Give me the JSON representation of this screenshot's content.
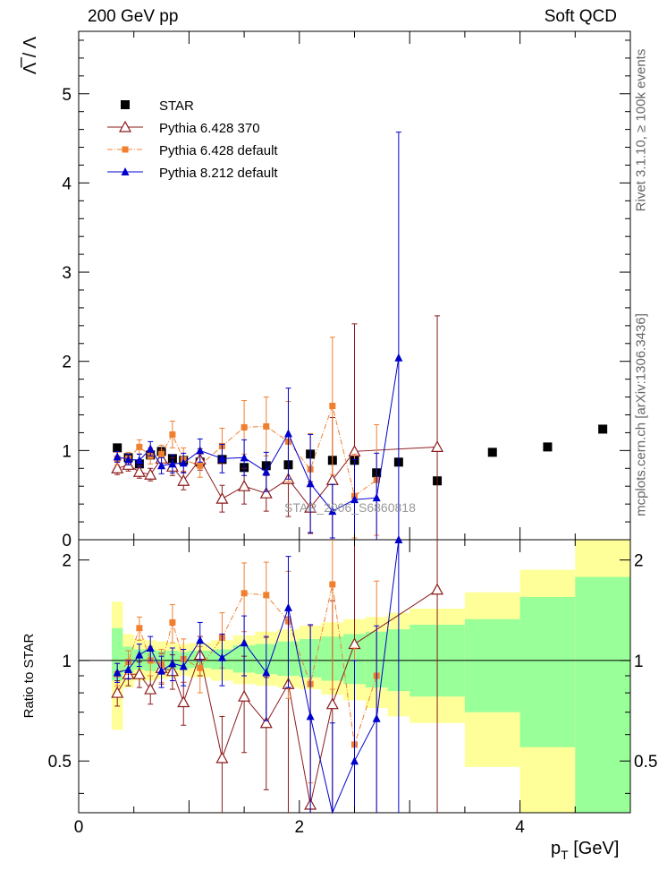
{
  "header": {
    "left_title": "200 GeV pp",
    "right_title": "Soft QCD"
  },
  "side_labels": {
    "rivet": "Rivet 3.1.10, ≥ 100k events",
    "mcplots": "mcplots.cern.ch [arXiv:1306.3436]"
  },
  "watermark": "STAR_2006_S6860818",
  "colors": {
    "star": "#000000",
    "pythia6_370": "#8b1a1a",
    "pythia6_default": "#f07f30",
    "pythia8": "#0000cc",
    "band_inner": "#99ff99",
    "band_outer": "#ffff99"
  },
  "chart_data": [
    {
      "type": "scatter",
      "panel": "main",
      "ylabel": "Λ̅ / Λ",
      "xlim": [
        0,
        5
      ],
      "ylim": [
        0,
        5.7
      ],
      "yticks": [
        0,
        1,
        2,
        3,
        4,
        5
      ],
      "legend": [
        "STAR",
        "Pythia 6.428 370",
        "Pythia 6.428 default",
        "Pythia 8.212 default"
      ],
      "series": [
        {
          "name": "STAR",
          "marker": "square",
          "x": [
            0.35,
            0.45,
            0.55,
            0.65,
            0.75,
            0.85,
            0.95,
            1.1,
            1.3,
            1.5,
            1.7,
            1.9,
            2.1,
            2.3,
            2.5,
            2.7,
            2.9,
            3.25,
            3.75,
            4.25,
            4.75
          ],
          "y": [
            1.03,
            0.92,
            0.85,
            0.95,
            0.99,
            0.91,
            0.89,
            0.87,
            0.9,
            0.81,
            0.83,
            0.84,
            0.96,
            0.89,
            0.89,
            0.75,
            0.87,
            0.66,
            0.98,
            1.04,
            1.24
          ],
          "yerr": [
            0.02,
            0.02,
            0.02,
            0.02,
            0.02,
            0.02,
            0.02,
            0.02,
            0.02,
            0.02,
            0.02,
            0.02,
            0.02,
            0.02,
            0.02,
            0.02,
            0.02,
            0.02,
            0.02,
            0.02,
            0.02
          ]
        },
        {
          "name": "Pythia 6.428 370",
          "marker": "open-triangle",
          "x": [
            0.35,
            0.45,
            0.55,
            0.65,
            0.75,
            0.85,
            0.95,
            1.1,
            1.3,
            1.5,
            1.7,
            1.9,
            2.1,
            2.3,
            2.5,
            3.25
          ],
          "y": [
            0.8,
            0.84,
            0.76,
            0.73,
            0.91,
            0.82,
            0.66,
            0.9,
            0.46,
            0.6,
            0.52,
            0.68,
            0.36,
            0.67,
            0.99,
            1.04
          ],
          "yerr": [
            0.07,
            0.07,
            0.07,
            0.07,
            0.1,
            0.1,
            0.1,
            0.12,
            0.15,
            0.2,
            0.2,
            0.42,
            0.29,
            0.7,
            1.43,
            1.47
          ]
        },
        {
          "name": "Pythia 6.428 default",
          "marker": "small-square",
          "x": [
            0.35,
            0.45,
            0.55,
            0.65,
            0.75,
            0.85,
            0.95,
            1.1,
            1.3,
            1.5,
            1.7,
            1.9,
            2.1,
            2.3,
            2.5,
            2.7
          ],
          "y": [
            0.91,
            0.91,
            1.04,
            0.94,
            0.96,
            1.18,
            0.9,
            0.83,
            1.05,
            1.26,
            1.27,
            1.1,
            0.79,
            1.5,
            0.49,
            0.67
          ],
          "yerr": [
            0.07,
            0.07,
            0.08,
            0.09,
            0.1,
            0.15,
            0.13,
            0.13,
            0.2,
            0.3,
            0.33,
            0.45,
            0.4,
            0.77,
            0.47,
            0.62
          ]
        },
        {
          "name": "Pythia 8.212 default",
          "marker": "triangle",
          "x": [
            0.35,
            0.45,
            0.55,
            0.65,
            0.75,
            0.85,
            0.95,
            1.1,
            1.3,
            1.5,
            1.7,
            1.9,
            2.1,
            2.3,
            2.5,
            2.7,
            2.9
          ],
          "y": [
            0.93,
            0.9,
            0.89,
            1.02,
            0.83,
            0.85,
            0.86,
            1.0,
            0.91,
            0.92,
            0.76,
            1.19,
            0.63,
            0.32,
            0.45,
            0.47,
            2.04
          ],
          "yerr": [
            0.06,
            0.06,
            0.07,
            0.08,
            0.09,
            0.1,
            0.11,
            0.13,
            0.16,
            0.2,
            0.22,
            0.51,
            0.55,
            0.3,
            0.45,
            0.5,
            2.53
          ]
        }
      ]
    },
    {
      "type": "scatter",
      "panel": "ratio",
      "ylabel": "Ratio to STAR",
      "xlabel": "p_T [GeV]",
      "xlim": [
        0,
        5
      ],
      "ylim": [
        0.35,
        2.3
      ],
      "xticks": [
        0,
        2,
        4
      ],
      "yticks": [
        0.5,
        1,
        2
      ],
      "bands": {
        "x_edges": [
          0.3,
          0.4,
          0.5,
          0.6,
          0.7,
          0.8,
          0.9,
          1.0,
          1.2,
          1.4,
          1.6,
          1.8,
          2.0,
          2.2,
          2.4,
          2.6,
          2.8,
          3.0,
          3.5,
          4.0,
          4.5,
          5.0
        ],
        "inner_lo": [
          0.87,
          0.92,
          0.94,
          0.93,
          0.94,
          0.94,
          0.94,
          0.95,
          0.94,
          0.92,
          0.91,
          0.9,
          0.89,
          0.87,
          0.85,
          0.83,
          0.81,
          0.78,
          0.7,
          0.55,
          0.3
        ],
        "inner_hi": [
          1.25,
          1.1,
          1.08,
          1.08,
          1.07,
          1.07,
          1.06,
          1.07,
          1.08,
          1.11,
          1.12,
          1.14,
          1.16,
          1.18,
          1.2,
          1.22,
          1.24,
          1.28,
          1.33,
          1.55,
          1.78
        ],
        "outer_lo": [
          0.62,
          0.83,
          0.87,
          0.87,
          0.88,
          0.89,
          0.9,
          0.89,
          0.87,
          0.85,
          0.84,
          0.83,
          0.82,
          0.79,
          0.76,
          0.72,
          0.68,
          0.65,
          0.48,
          0.35,
          0.3
        ],
        "outer_hi": [
          1.5,
          1.2,
          1.16,
          1.15,
          1.14,
          1.13,
          1.12,
          1.13,
          1.15,
          1.19,
          1.22,
          1.24,
          1.27,
          1.3,
          1.33,
          1.35,
          1.39,
          1.43,
          1.6,
          1.87,
          2.3
        ]
      },
      "series": [
        {
          "name": "Pythia 6.428 370",
          "marker": "open-triangle",
          "x": [
            0.35,
            0.45,
            0.55,
            0.65,
            0.75,
            0.85,
            0.95,
            1.1,
            1.3,
            1.5,
            1.7,
            1.9,
            2.1,
            2.3,
            2.5,
            3.25
          ],
          "y": [
            0.8,
            0.91,
            0.91,
            0.82,
            0.95,
            0.93,
            0.75,
            1.04,
            0.51,
            0.78,
            0.65,
            0.85,
            0.37,
            0.74,
            1.12,
            1.63
          ],
          "yerr": [
            0.07,
            0.07,
            0.08,
            0.08,
            0.1,
            0.11,
            0.11,
            0.14,
            0.17,
            0.25,
            0.24,
            0.5,
            0.3,
            0.77,
            1.6,
            2.2
          ]
        },
        {
          "name": "Pythia 6.428 default",
          "marker": "small-square",
          "x": [
            0.35,
            0.45,
            0.55,
            0.65,
            0.75,
            0.85,
            0.95,
            1.1,
            1.3,
            1.5,
            1.7,
            1.9,
            2.1,
            2.3,
            2.5,
            2.7
          ],
          "y": [
            0.91,
            0.99,
            1.25,
            1.0,
            0.97,
            1.3,
            1.01,
            0.95,
            1.17,
            1.59,
            1.57,
            1.31,
            0.85,
            1.69,
            0.56,
            0.9
          ],
          "yerr": [
            0.07,
            0.08,
            0.1,
            0.1,
            0.11,
            0.17,
            0.15,
            0.15,
            0.22,
            0.37,
            0.4,
            0.54,
            0.42,
            0.87,
            0.53,
            0.83
          ]
        },
        {
          "name": "Pythia 8.212 default",
          "marker": "triangle",
          "x": [
            0.35,
            0.45,
            0.55,
            0.65,
            0.75,
            0.85,
            0.95,
            1.1,
            1.3,
            1.5,
            1.7,
            1.9,
            2.1,
            2.3,
            2.5,
            2.7,
            2.9
          ],
          "y": [
            0.92,
            0.94,
            1.04,
            1.09,
            0.93,
            0.98,
            0.96,
            1.15,
            1.02,
            1.13,
            0.92,
            1.44,
            0.68,
            0.3,
            0.5,
            0.67,
            2.3
          ],
          "yerr": [
            0.06,
            0.06,
            0.08,
            0.09,
            0.1,
            0.11,
            0.12,
            0.15,
            0.18,
            0.23,
            0.26,
            0.61,
            0.6,
            0.35,
            0.5,
            0.6,
            2.5
          ]
        }
      ]
    }
  ]
}
